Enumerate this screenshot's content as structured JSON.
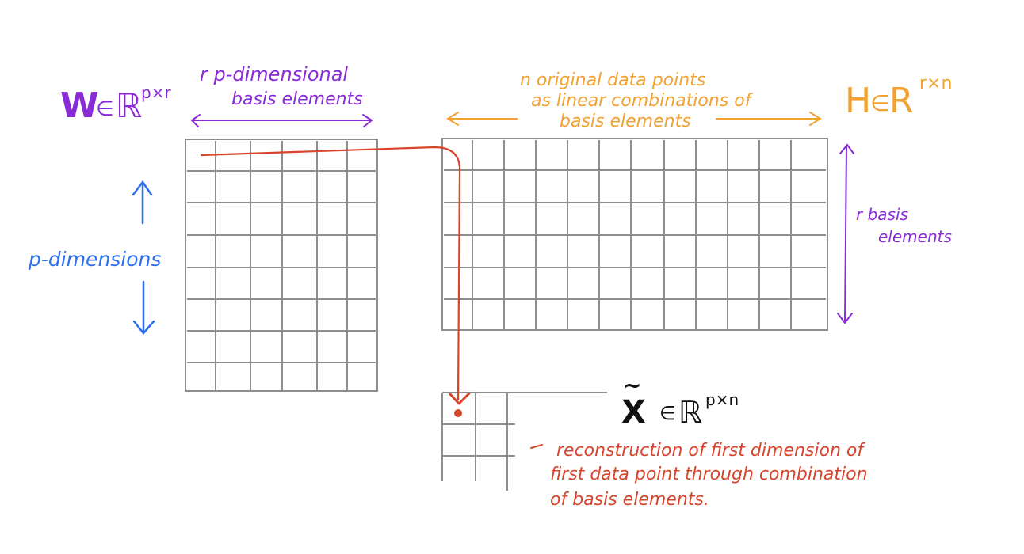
{
  "colors": {
    "purple": "#8a2bd8",
    "orange": "#f0a232",
    "blue": "#2e6ff0",
    "red": "#d8442c",
    "gray": "#8e8e8e",
    "black": "#111111"
  },
  "W": {
    "symbol": "W",
    "member": "∈",
    "set": "ℝ",
    "superscript": "p×r",
    "top_label_line1": "r  p-dimensional",
    "top_label_line2": "basis elements",
    "side_label": "p-dimensions"
  },
  "H": {
    "symbol": "H",
    "member": "∈",
    "set": "R",
    "superscript": "r×n",
    "top_label_line1": "n  original data points",
    "top_label_line2": "as linear combinations of",
    "top_label_line3": "basis elements",
    "side_label_line1": "r  basis",
    "side_label_line2": "elements"
  },
  "X": {
    "symbol": "X",
    "tilde": "~",
    "member": "∈",
    "set": "ℝ",
    "superscript": "p×n",
    "note_line1": "reconstruction of first dimension of",
    "note_line2": "first data point through combination",
    "note_line3": "of basis elements."
  }
}
